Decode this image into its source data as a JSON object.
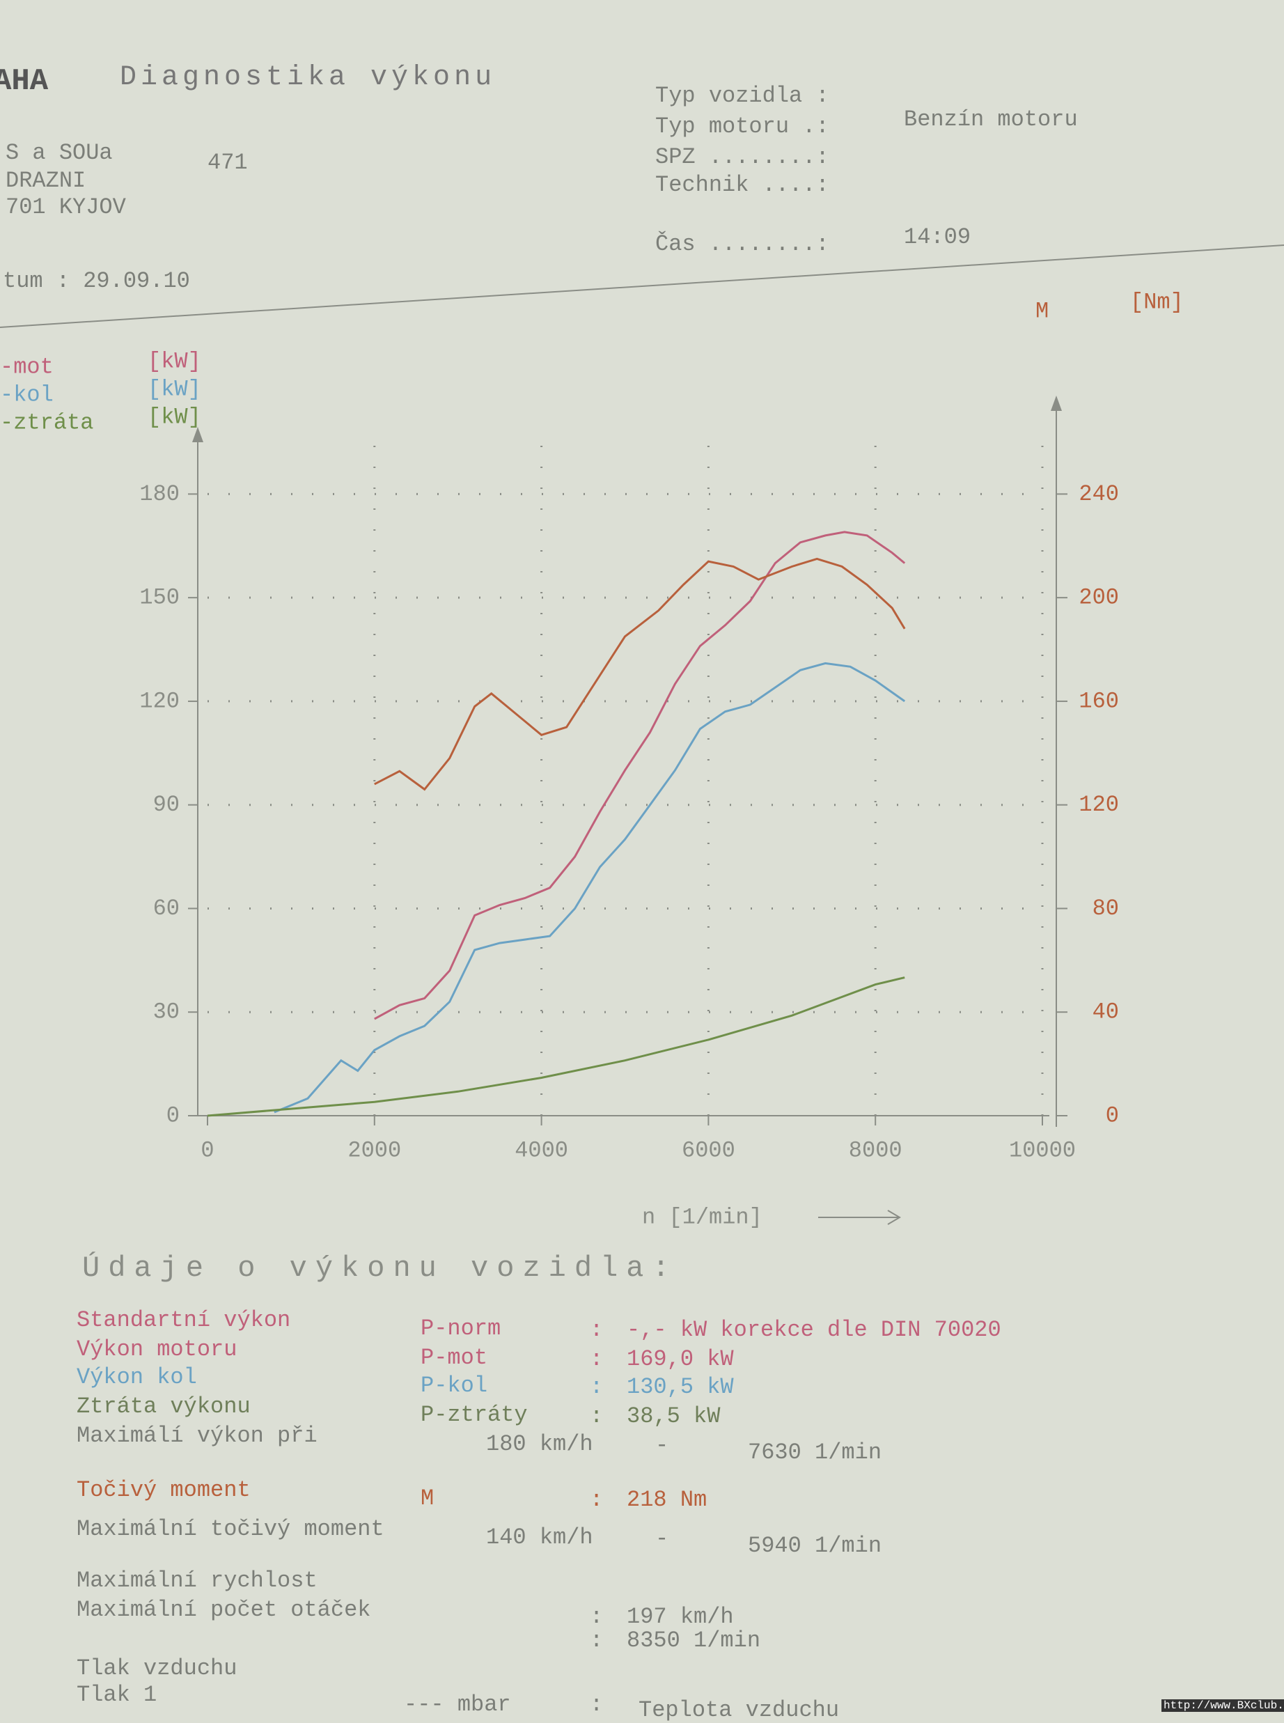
{
  "header": {
    "logo": "AHA",
    "title": "Diagnostika výkonu",
    "address": [
      "S a SOUa",
      "DRAZNI",
      "701 KYJOV"
    ],
    "number": "471",
    "date": "tum : 29.09.10",
    "fields": [
      {
        "label": "Typ vozidla :"
      },
      {
        "label": "Typ motoru .:",
        "value": "Benzín motoru"
      },
      {
        "label": "SPZ ........:"
      },
      {
        "label": "Technik ....:"
      },
      {
        "label": "Čas ........:",
        "value": "14:09"
      }
    ]
  },
  "chart_data": {
    "type": "line",
    "xlabel": "n [1/min]",
    "y_unit": "[kW]",
    "y2_label": "M",
    "y2_unit": "[Nm]",
    "xlim": [
      0,
      10000
    ],
    "xticks": [
      0,
      2000,
      4000,
      6000,
      8000,
      10000
    ],
    "ylim": [
      0,
      195
    ],
    "yticks": [
      0,
      30,
      60,
      90,
      120,
      150,
      180
    ],
    "y2lim": [
      0,
      260
    ],
    "y2ticks": [
      0,
      40,
      80,
      120,
      160,
      200,
      240
    ],
    "grid": true,
    "series": [
      {
        "name": "-mot",
        "color": "#c0607a",
        "x": [
          2000,
          2300,
          2600,
          2900,
          3200,
          3500,
          3800,
          4100,
          4400,
          4700,
          5000,
          5300,
          5600,
          5900,
          6200,
          6500,
          6800,
          7100,
          7400,
          7630,
          7900,
          8200,
          8350
        ],
        "values": [
          28,
          32,
          34,
          42,
          58,
          61,
          63,
          66,
          75,
          88,
          100,
          111,
          125,
          136,
          142,
          149,
          160,
          166,
          168,
          169,
          168,
          163,
          160
        ]
      },
      {
        "name": "-kol",
        "color": "#6aa2c4",
        "x": [
          800,
          1200,
          1600,
          1800,
          2000,
          2300,
          2600,
          2900,
          3200,
          3500,
          3800,
          4100,
          4400,
          4700,
          5000,
          5300,
          5600,
          5900,
          6200,
          6500,
          6800,
          7100,
          7400,
          7700,
          8000,
          8350
        ],
        "values": [
          1,
          5,
          16,
          13,
          19,
          23,
          26,
          33,
          48,
          50,
          51,
          52,
          60,
          72,
          80,
          90,
          100,
          112,
          117,
          119,
          124,
          129,
          131,
          130,
          126,
          120
        ]
      },
      {
        "name": "-ztráta",
        "color": "#6f8f4a",
        "x": [
          0,
          1000,
          2000,
          3000,
          4000,
          5000,
          6000,
          7000,
          8000,
          8350
        ],
        "values": [
          0,
          2,
          4,
          7,
          11,
          16,
          22,
          29,
          38,
          40
        ]
      },
      {
        "name": "M",
        "color": "#b8603c",
        "axis": "y2",
        "x": [
          2000,
          2300,
          2600,
          2900,
          3200,
          3400,
          3700,
          4000,
          4300,
          4600,
          5000,
          5400,
          5700,
          6000,
          6300,
          6600,
          7000,
          7300,
          7600,
          7900,
          8200,
          8350
        ],
        "values": [
          128,
          133,
          126,
          138,
          158,
          163,
          155,
          147,
          150,
          165,
          185,
          195,
          205,
          214,
          212,
          207,
          212,
          215,
          212,
          205,
          196,
          188
        ]
      }
    ]
  },
  "details": {
    "title": "Údaje o výkonu vozidla:",
    "rows": [
      {
        "label": "Standartní výkon",
        "symbol": "P-norm",
        "sep": ":",
        "value": "-,- kW korekce dle DIN 70020"
      },
      {
        "label": "Výkon motoru",
        "symbol": "P-mot",
        "sep": ":",
        "value": "169,0 kW"
      },
      {
        "label": "Výkon kol",
        "symbol": "P-kol",
        "sep": ":",
        "value": "130,5 kW"
      },
      {
        "label": "Ztráta výkonu",
        "symbol": "P-ztráty",
        "sep": ":",
        "value": "38,5 kW"
      },
      {
        "label": "Maximálí výkon při",
        "speed": "180 km/h",
        "sep": "-",
        "value": "7630 1/min"
      },
      {
        "label": "Točivý moment",
        "symbol": "M",
        "sep": ":",
        "value": "218 Nm"
      },
      {
        "label": "Maximální točivý moment",
        "speed": "140 km/h",
        "sep": "-",
        "value": "5940 1/min"
      },
      {
        "label": "Maximální rychlost"
      },
      {
        "label": "Maximální počet otáček",
        "sep": ":",
        "value": "197 km/h"
      },
      {
        "sep": ":",
        "value": "8350 1/min"
      },
      {
        "label": "Tlak vzduchu"
      },
      {
        "label": "Tlak 1",
        "sep": ":",
        "value": "--- mbar"
      },
      {
        "label": "Teplota vzduchu"
      }
    ]
  },
  "footer": "http://www.BXclub.cz"
}
